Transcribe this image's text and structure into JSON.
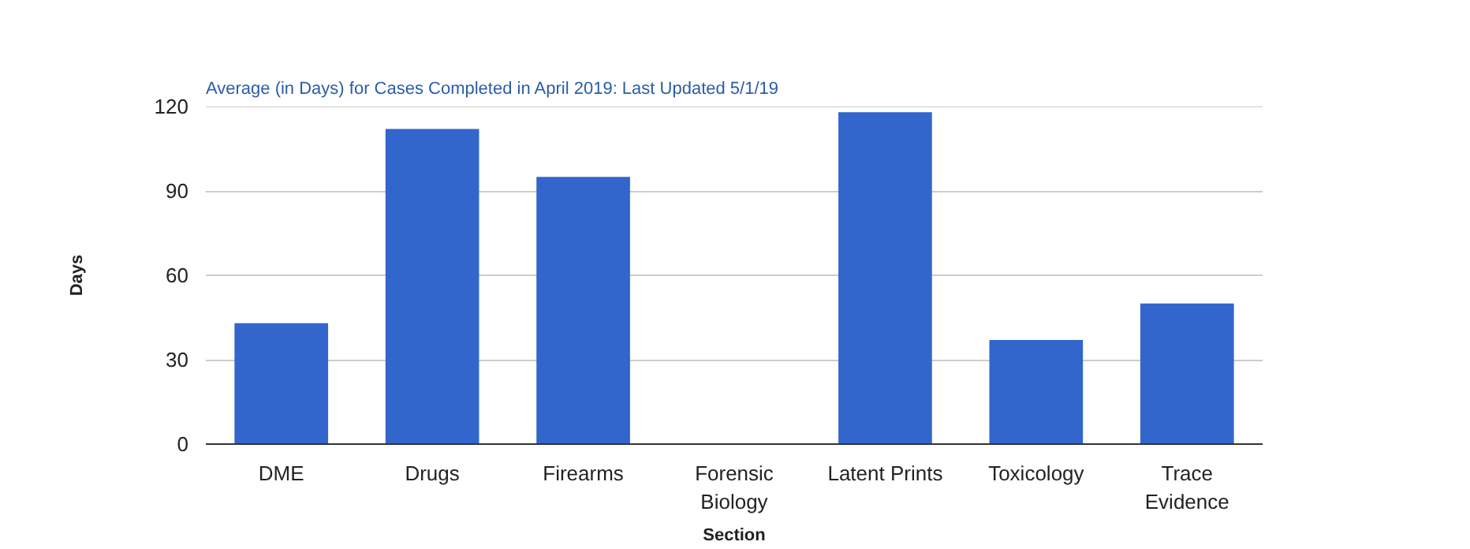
{
  "chart_data": {
    "type": "bar",
    "title": "Average (in Days) for Cases Completed in April 2019: Last Updated 5/1/19",
    "xlabel": "Section",
    "ylabel": "Days",
    "categories": [
      "DME",
      "Drugs",
      "Firearms",
      "Forensic\nBiology",
      "Latent Prints",
      "Toxicology",
      "Trace\nEvidence"
    ],
    "values": [
      43,
      112,
      95,
      0,
      118,
      37,
      50
    ],
    "color": "#3366cc",
    "ylim": [
      0,
      120
    ],
    "yticks": [
      0,
      30,
      60,
      90,
      120
    ],
    "grid": "y"
  }
}
